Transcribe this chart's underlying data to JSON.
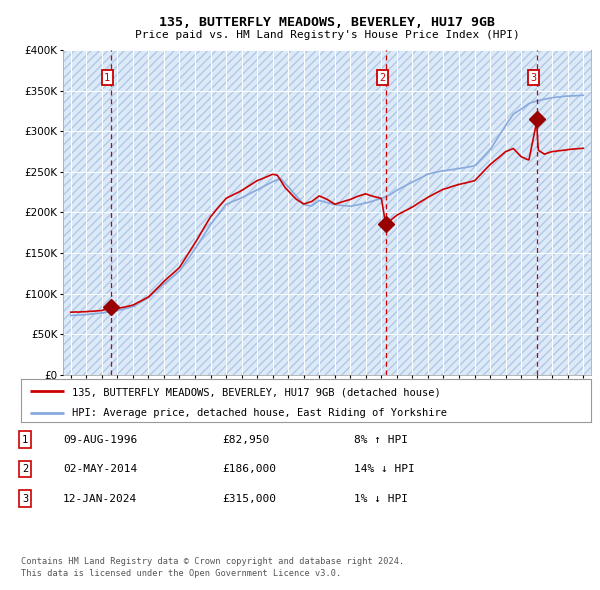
{
  "title": "135, BUTTERFLY MEADOWS, BEVERLEY, HU17 9GB",
  "subtitle": "Price paid vs. HM Land Registry's House Price Index (HPI)",
  "legend_line1": "135, BUTTERFLY MEADOWS, BEVERLEY, HU17 9GB (detached house)",
  "legend_line2": "HPI: Average price, detached house, East Riding of Yorkshire",
  "table_rows": [
    {
      "num": 1,
      "date": "09-AUG-1996",
      "price": "£82,950",
      "hpi": "8% ↑ HPI"
    },
    {
      "num": 2,
      "date": "02-MAY-2014",
      "price": "£186,000",
      "hpi": "14% ↓ HPI"
    },
    {
      "num": 3,
      "date": "12-JAN-2024",
      "price": "£315,000",
      "hpi": "1% ↓ HPI"
    }
  ],
  "footer1": "Contains HM Land Registry data © Crown copyright and database right 2024.",
  "footer2": "This data is licensed under the Open Government Licence v3.0.",
  "sale_dates_decimal": [
    1996.603,
    2014.331,
    2024.036
  ],
  "sale_prices": [
    82950,
    186000,
    315000
  ],
  "ylim": [
    0,
    400000
  ],
  "xlim_start": 1993.5,
  "xlim_end": 2027.5,
  "bg_color": "#dce9f7",
  "hatch_color": "#b0c8e8",
  "red_line_color": "#cc0000",
  "blue_line_color": "#88aadd",
  "grid_color": "#ffffff",
  "dashed_line_color": "#cc0000",
  "marker_color": "#990000",
  "box_color": "#cc0000",
  "hpi_keypoints": [
    [
      1994.0,
      73000
    ],
    [
      1995.0,
      74000
    ],
    [
      1996.0,
      76000
    ],
    [
      1997.0,
      79000
    ],
    [
      1998.0,
      84000
    ],
    [
      1999.0,
      95000
    ],
    [
      2000.0,
      112000
    ],
    [
      2001.0,
      128000
    ],
    [
      2002.0,
      155000
    ],
    [
      2003.0,
      185000
    ],
    [
      2004.0,
      210000
    ],
    [
      2005.0,
      218000
    ],
    [
      2006.0,
      228000
    ],
    [
      2007.0,
      238000
    ],
    [
      2007.5,
      242000
    ],
    [
      2008.0,
      232000
    ],
    [
      2009.0,
      210000
    ],
    [
      2009.5,
      208000
    ],
    [
      2010.0,
      215000
    ],
    [
      2011.0,
      210000
    ],
    [
      2012.0,
      208000
    ],
    [
      2013.0,
      212000
    ],
    [
      2014.0,
      218000
    ],
    [
      2014.5,
      222000
    ],
    [
      2015.0,
      228000
    ],
    [
      2016.0,
      238000
    ],
    [
      2017.0,
      248000
    ],
    [
      2018.0,
      252000
    ],
    [
      2019.0,
      255000
    ],
    [
      2020.0,
      258000
    ],
    [
      2021.0,
      278000
    ],
    [
      2022.0,
      308000
    ],
    [
      2022.5,
      322000
    ],
    [
      2023.0,
      328000
    ],
    [
      2023.5,
      335000
    ],
    [
      2024.0,
      338000
    ],
    [
      2024.5,
      340000
    ],
    [
      2025.0,
      342000
    ],
    [
      2026.0,
      344000
    ],
    [
      2027.0,
      345000
    ]
  ],
  "red_keypoints": [
    [
      1994.0,
      77000
    ],
    [
      1995.0,
      78000
    ],
    [
      1996.0,
      79000
    ],
    [
      1996.6,
      83000
    ],
    [
      1997.0,
      82000
    ],
    [
      1998.0,
      86000
    ],
    [
      1999.0,
      96000
    ],
    [
      2000.0,
      115000
    ],
    [
      2001.0,
      132000
    ],
    [
      2002.0,
      162000
    ],
    [
      2003.0,
      195000
    ],
    [
      2004.0,
      218000
    ],
    [
      2005.0,
      228000
    ],
    [
      2006.0,
      240000
    ],
    [
      2007.0,
      248000
    ],
    [
      2007.3,
      247000
    ],
    [
      2007.8,
      232000
    ],
    [
      2008.5,
      218000
    ],
    [
      2009.0,
      212000
    ],
    [
      2009.5,
      215000
    ],
    [
      2010.0,
      222000
    ],
    [
      2010.5,
      218000
    ],
    [
      2011.0,
      212000
    ],
    [
      2011.5,
      215000
    ],
    [
      2012.0,
      218000
    ],
    [
      2012.5,
      222000
    ],
    [
      2013.0,
      225000
    ],
    [
      2013.5,
      222000
    ],
    [
      2014.0,
      220000
    ],
    [
      2014.3,
      186000
    ],
    [
      2014.5,
      192000
    ],
    [
      2015.0,
      200000
    ],
    [
      2016.0,
      210000
    ],
    [
      2017.0,
      222000
    ],
    [
      2018.0,
      232000
    ],
    [
      2019.0,
      238000
    ],
    [
      2020.0,
      242000
    ],
    [
      2021.0,
      262000
    ],
    [
      2022.0,
      278000
    ],
    [
      2022.5,
      282000
    ],
    [
      2023.0,
      272000
    ],
    [
      2023.5,
      268000
    ],
    [
      2024.0,
      315000
    ],
    [
      2024.1,
      280000
    ],
    [
      2024.5,
      275000
    ],
    [
      2025.0,
      278000
    ],
    [
      2026.0,
      280000
    ],
    [
      2027.0,
      282000
    ]
  ]
}
